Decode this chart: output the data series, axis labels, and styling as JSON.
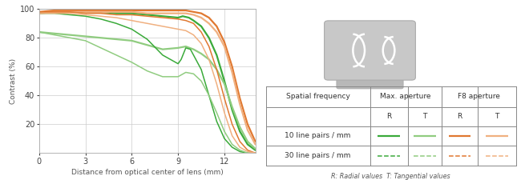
{
  "xlabel": "Distance from optical center of lens (mm)",
  "ylabel": "Contrast (%)",
  "xlim": [
    0,
    14
  ],
  "ylim": [
    0,
    100
  ],
  "xticks": [
    0,
    3,
    6,
    9,
    12
  ],
  "yticks": [
    20,
    40,
    60,
    80,
    100
  ],
  "colors": {
    "green_dark": "#3aaa3a",
    "green_light": "#90cc80",
    "orange_dark": "#e07830",
    "orange_light": "#f0b080"
  },
  "lines": {
    "max_10R": {
      "color": "#3aaa3a",
      "lw": 1.6,
      "x": [
        0,
        1,
        2,
        3,
        4,
        5,
        6,
        7,
        8,
        9,
        9.3,
        9.7,
        10,
        10.5,
        11,
        11.5,
        12,
        12.5,
        13,
        13.5,
        14
      ],
      "y": [
        97,
        98,
        98,
        98,
        98,
        97,
        97,
        96,
        95,
        94,
        95,
        94,
        92,
        88,
        80,
        68,
        50,
        30,
        15,
        6,
        2
      ]
    },
    "max_10T": {
      "color": "#90cc80",
      "lw": 1.6,
      "x": [
        0,
        1,
        2,
        3,
        4,
        5,
        6,
        7,
        8,
        9,
        9.5,
        10,
        10.5,
        11,
        11.5,
        12,
        12.5,
        13,
        13.5,
        14
      ],
      "y": [
        84,
        83,
        82,
        81,
        80,
        79,
        78,
        75,
        72,
        73,
        74,
        72,
        69,
        65,
        58,
        48,
        32,
        18,
        8,
        3
      ]
    },
    "max_30R": {
      "color": "#3aaa3a",
      "lw": 1.1,
      "x": [
        0,
        1,
        2,
        3,
        4,
        5,
        6,
        7,
        8,
        9,
        9.2,
        9.5,
        9.8,
        10,
        10.5,
        11,
        11.5,
        12,
        12.5,
        13,
        13.5,
        14
      ],
      "y": [
        97,
        97,
        96,
        95,
        93,
        90,
        86,
        79,
        68,
        62,
        65,
        73,
        72,
        68,
        58,
        40,
        22,
        10,
        4,
        1,
        0,
        0
      ]
    },
    "max_30T": {
      "color": "#90cc80",
      "lw": 1.1,
      "x": [
        0,
        1,
        2,
        3,
        4,
        5,
        6,
        7,
        8,
        9,
        9.5,
        10,
        10.5,
        11,
        11.5,
        12,
        12.5,
        13,
        13.5,
        14
      ],
      "y": [
        84,
        82,
        80,
        78,
        73,
        68,
        63,
        57,
        53,
        53,
        56,
        55,
        50,
        40,
        28,
        15,
        6,
        2,
        0,
        0
      ]
    },
    "f8_10R": {
      "color": "#e07830",
      "lw": 1.6,
      "x": [
        0,
        1,
        2,
        3,
        4,
        5,
        6,
        7,
        8,
        9,
        9.5,
        10,
        10.5,
        11,
        11.5,
        12,
        12.5,
        13,
        13.5,
        14
      ],
      "y": [
        98,
        99,
        99,
        99,
        99,
        99,
        99,
        99,
        99,
        99,
        99,
        98,
        97,
        94,
        88,
        77,
        60,
        38,
        20,
        8
      ]
    },
    "f8_10T": {
      "color": "#f0b080",
      "lw": 1.6,
      "x": [
        0,
        1,
        2,
        3,
        4,
        5,
        6,
        7,
        8,
        9,
        9.5,
        10,
        10.5,
        11,
        11.5,
        12,
        12.5,
        13,
        13.5,
        14
      ],
      "y": [
        97,
        98,
        98,
        98,
        98,
        98,
        98,
        97,
        97,
        97,
        97,
        96,
        94,
        90,
        84,
        74,
        56,
        34,
        16,
        6
      ]
    },
    "f8_30R": {
      "color": "#e07830",
      "lw": 1.1,
      "x": [
        0,
        1,
        2,
        3,
        4,
        5,
        6,
        7,
        8,
        9,
        9.5,
        10,
        10.5,
        11,
        11.5,
        12,
        12.5,
        13,
        13.5,
        14
      ],
      "y": [
        98,
        98,
        98,
        97,
        97,
        96,
        96,
        95,
        94,
        93,
        92,
        90,
        84,
        74,
        58,
        38,
        20,
        8,
        2,
        0
      ]
    },
    "f8_30T": {
      "color": "#f0b080",
      "lw": 1.1,
      "x": [
        0,
        1,
        2,
        3,
        4,
        5,
        6,
        7,
        8,
        9,
        9.5,
        10,
        10.5,
        11,
        11.5,
        12,
        12.5,
        13,
        13.5,
        14
      ],
      "y": [
        97,
        97,
        97,
        96,
        95,
        94,
        92,
        90,
        88,
        86,
        85,
        82,
        76,
        65,
        48,
        28,
        12,
        4,
        1,
        0
      ]
    }
  },
  "note": "R: Radial values  T: Tangential values",
  "row1": "10 line pairs / mm",
  "row2": "30 line pairs / mm",
  "col_max": "Max. aperture",
  "col_f8": "F8 aperture",
  "col_sf": "Spatial frequency"
}
